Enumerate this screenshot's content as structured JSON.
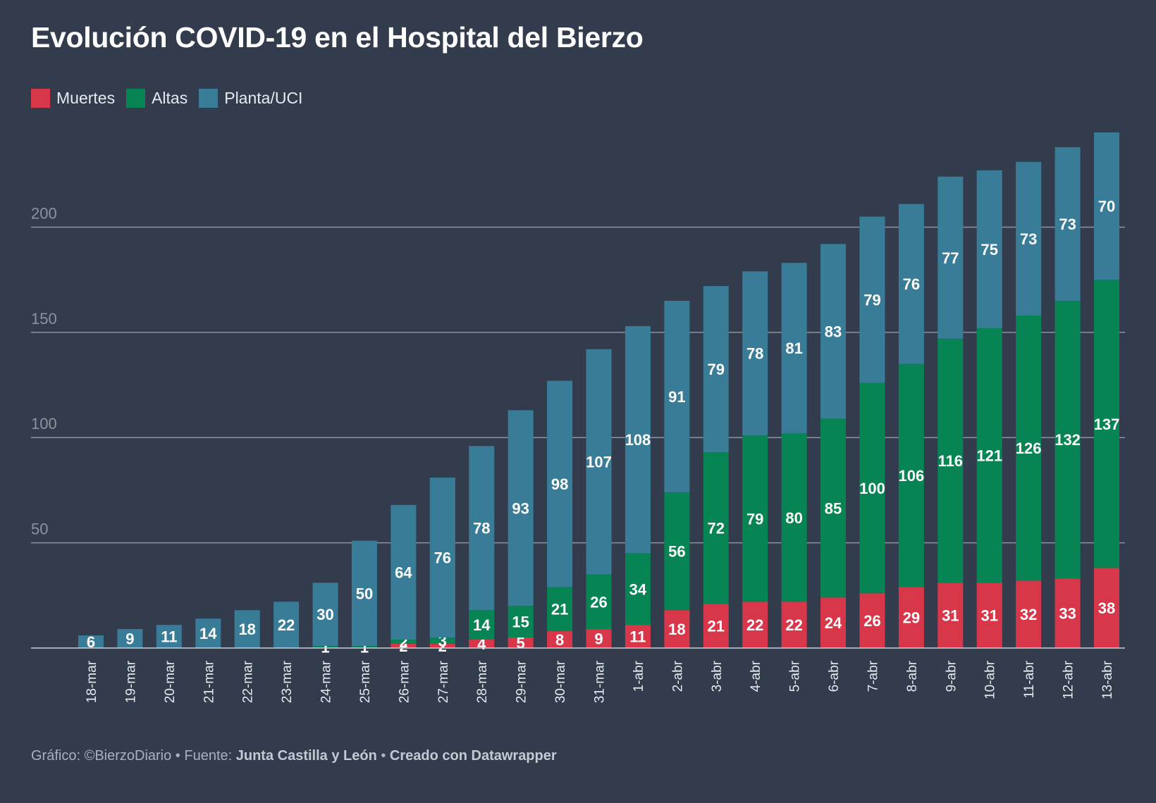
{
  "title": "Evolución COVID-19 en el Hospital del Bierzo",
  "footer": {
    "prefix": "Gráfico: ©BierzoDiario • Fuente: ",
    "source": "Junta Castilla y León",
    "sep": " • ",
    "credit": "Creado con Datawrapper"
  },
  "colors": {
    "background": "#333c4d",
    "muertes": "#d8374a",
    "altas": "#068454",
    "planta": "#387c97",
    "grid": "#8c939e",
    "tick_text": "#8c939e"
  },
  "chart_data": {
    "type": "bar",
    "stacked": true,
    "title": "Evolución COVID-19 en el Hospital del Bierzo",
    "legend_position": "top-left",
    "grid": true,
    "ylim": [
      0,
      245
    ],
    "yticks": [
      50,
      100,
      150,
      200
    ],
    "categories": [
      "18-mar",
      "19-mar",
      "20-mar",
      "21-mar",
      "22-mar",
      "23-mar",
      "24-mar",
      "25-mar",
      "26-mar",
      "27-mar",
      "28-mar",
      "29-mar",
      "30-mar",
      "31-mar",
      "1-abr",
      "2-abr",
      "3-abr",
      "4-abr",
      "5-abr",
      "6-abr",
      "7-abr",
      "8-abr",
      "9-abr",
      "10-abr",
      "11-abr",
      "12-abr",
      "13-abr"
    ],
    "series": [
      {
        "name": "Muertes",
        "values": [
          0,
          0,
          0,
          0,
          0,
          0,
          0,
          0,
          2,
          2,
          4,
          5,
          8,
          9,
          11,
          18,
          21,
          22,
          22,
          24,
          26,
          29,
          31,
          31,
          32,
          33,
          38
        ]
      },
      {
        "name": "Altas",
        "values": [
          0,
          0,
          0,
          0,
          0,
          0,
          1,
          1,
          2,
          3,
          14,
          15,
          21,
          26,
          34,
          56,
          72,
          79,
          80,
          85,
          100,
          106,
          116,
          121,
          126,
          132,
          137
        ]
      },
      {
        "name": "Planta/UCI",
        "values": [
          6,
          9,
          11,
          14,
          18,
          22,
          30,
          50,
          64,
          76,
          78,
          93,
          98,
          107,
          108,
          91,
          79,
          78,
          81,
          83,
          79,
          76,
          77,
          75,
          73,
          73,
          70
        ]
      }
    ]
  }
}
